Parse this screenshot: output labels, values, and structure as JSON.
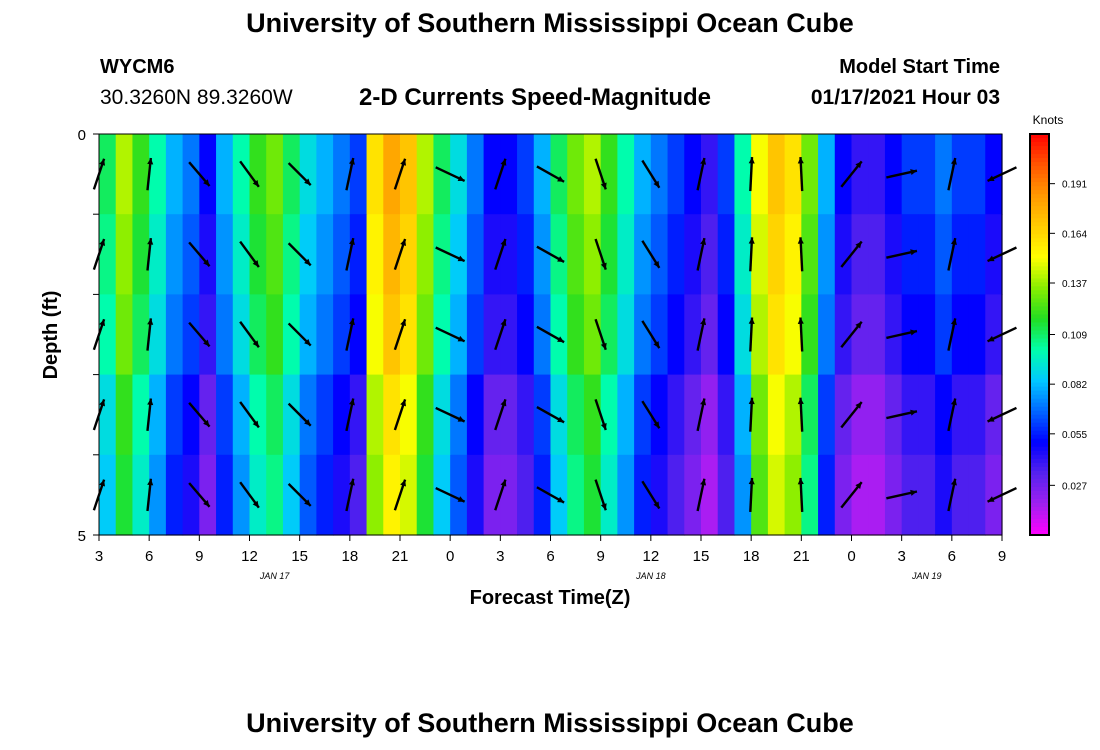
{
  "header": {
    "title": "University of Southern Mississippi Ocean Cube",
    "station_id": "WYCM6",
    "coordinates": "30.3260N 89.3260W",
    "chart_title": "2-D Currents Speed-Magnitude",
    "start_label": "Model Start Time",
    "start_value": "01/17/2021 Hour 03"
  },
  "footer": {
    "title": "University of Southern Mississippi Ocean Cube"
  },
  "colorbar": {
    "title": "Knots",
    "ticks": [
      "0.191",
      "0.164",
      "0.137",
      "0.109",
      "0.082",
      "0.055",
      "0.027"
    ],
    "tick_values": [
      0.191,
      0.164,
      0.137,
      0.109,
      0.082,
      0.055,
      0.027
    ],
    "min": 0.0,
    "max": 0.218,
    "palette": [
      "#ff00ff",
      "#a020f0",
      "#5522ee",
      "#0000ff",
      "#0066ff",
      "#00c8ff",
      "#00ffaa",
      "#22dd22",
      "#88ee00",
      "#ffff00",
      "#ffcc00",
      "#ff9900",
      "#ff5500",
      "#ff0000"
    ]
  },
  "chart_data": {
    "type": "heatmap",
    "xlabel": "Forecast Time(Z)",
    "ylabel": "Depth (ft)",
    "x_range_hours": [
      0,
      54
    ],
    "y_range_ft": [
      0,
      5
    ],
    "y_ticks": [
      "0",
      "5"
    ],
    "y_tick_values": [
      0,
      5
    ],
    "x_ticks": [
      {
        "label": "3",
        "hour": 0
      },
      {
        "label": "6",
        "hour": 3
      },
      {
        "label": "9",
        "hour": 6
      },
      {
        "label": "12",
        "hour": 9
      },
      {
        "label": "15",
        "hour": 12
      },
      {
        "label": "18",
        "hour": 15
      },
      {
        "label": "21",
        "hour": 18
      },
      {
        "label": "0",
        "hour": 21
      },
      {
        "label": "3",
        "hour": 24
      },
      {
        "label": "6",
        "hour": 27
      },
      {
        "label": "9",
        "hour": 30
      },
      {
        "label": "12",
        "hour": 33
      },
      {
        "label": "15",
        "hour": 36
      },
      {
        "label": "18",
        "hour": 39
      },
      {
        "label": "21",
        "hour": 42
      },
      {
        "label": "0",
        "hour": 45
      },
      {
        "label": "3",
        "hour": 48
      },
      {
        "label": "6",
        "hour": 51
      },
      {
        "label": "9",
        "hour": 54
      }
    ],
    "date_labels": [
      {
        "label": "JAN 17",
        "hour": 10.5
      },
      {
        "label": "JAN 18",
        "hour": 33
      },
      {
        "label": "JAN 19",
        "hour": 49.5
      }
    ],
    "depth_layers": 5,
    "speed_knots_by_hour": [
      0.1,
      0.13,
      0.11,
      0.09,
      0.07,
      0.06,
      0.04,
      0.07,
      0.09,
      0.11,
      0.12,
      0.1,
      0.08,
      0.07,
      0.06,
      0.05,
      0.15,
      0.17,
      0.16,
      0.13,
      0.1,
      0.08,
      0.06,
      0.04,
      0.04,
      0.05,
      0.07,
      0.1,
      0.12,
      0.13,
      0.11,
      0.09,
      0.07,
      0.06,
      0.05,
      0.04,
      0.03,
      0.05,
      0.09,
      0.14,
      0.16,
      0.15,
      0.12,
      0.07,
      0.04,
      0.03,
      0.03,
      0.04,
      0.05,
      0.05,
      0.06,
      0.05,
      0.05,
      0.04
    ],
    "layer_offsets": [
      0.01,
      0.005,
      0.0,
      -0.01,
      -0.015
    ],
    "vectors": [
      {
        "hour": 0,
        "dx": 0.3,
        "dy": 0.9
      },
      {
        "hour": 3,
        "dx": 0.1,
        "dy": 0.95
      },
      {
        "hour": 6,
        "dx": 0.6,
        "dy": -0.7
      },
      {
        "hour": 9,
        "dx": 0.55,
        "dy": -0.75
      },
      {
        "hour": 12,
        "dx": 0.65,
        "dy": -0.65
      },
      {
        "hour": 15,
        "dx": 0.2,
        "dy": 0.95
      },
      {
        "hour": 18,
        "dx": 0.3,
        "dy": 0.9
      },
      {
        "hour": 21,
        "dx": 0.85,
        "dy": -0.4
      },
      {
        "hour": 24,
        "dx": 0.3,
        "dy": 0.9
      },
      {
        "hour": 27,
        "dx": 0.8,
        "dy": -0.45
      },
      {
        "hour": 30,
        "dx": 0.3,
        "dy": -0.9
      },
      {
        "hour": 33,
        "dx": 0.5,
        "dy": -0.8
      },
      {
        "hour": 36,
        "dx": 0.2,
        "dy": 0.95
      },
      {
        "hour": 39,
        "dx": 0.05,
        "dy": 1.0
      },
      {
        "hour": 42,
        "dx": -0.05,
        "dy": 1.0
      },
      {
        "hour": 45,
        "dx": 0.6,
        "dy": 0.75
      },
      {
        "hour": 48,
        "dx": 0.9,
        "dy": 0.2
      },
      {
        "hour": 51,
        "dx": 0.2,
        "dy": 0.95
      },
      {
        "hour": 54,
        "dx": -0.85,
        "dy": -0.4
      }
    ]
  }
}
